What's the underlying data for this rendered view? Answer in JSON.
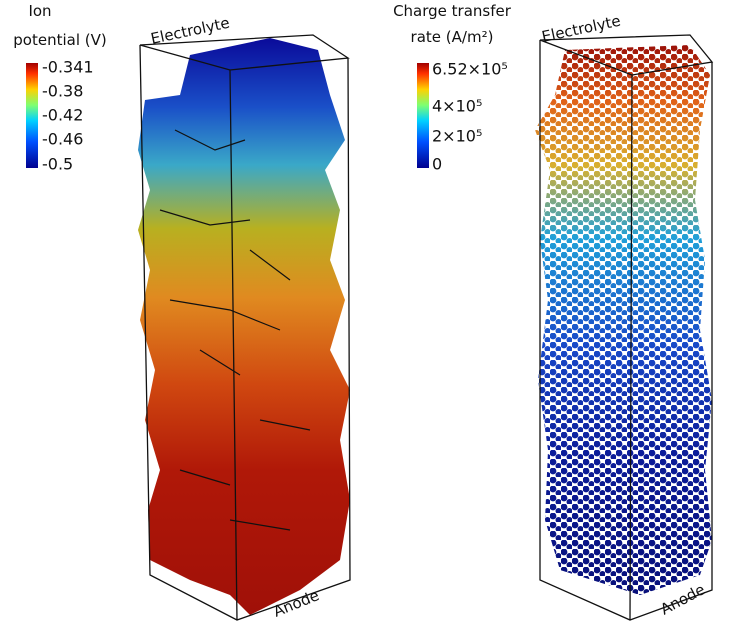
{
  "panels": [
    {
      "colorbar": {
        "title": [
          "Ion",
          "potential (V)"
        ],
        "ticks": [
          "-0.341",
          "-0.38",
          "-0.42",
          "-0.46",
          "-0.5"
        ]
      },
      "top_label": "Electrolyte",
      "bottom_label": "Anode"
    },
    {
      "colorbar": {
        "title": [
          "Charge transfer",
          "rate (A/m²)"
        ],
        "ticks": [
          "6.52×10⁵",
          "4×10⁵",
          "2×10⁵",
          "0"
        ]
      },
      "top_label": "Electrolyte",
      "bottom_label": "Anode"
    }
  ]
}
